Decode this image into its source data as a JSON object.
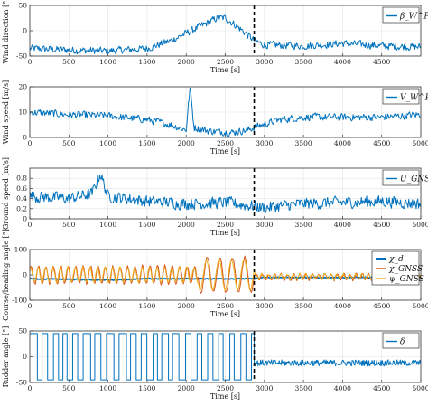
{
  "chart_data": [
    {
      "type": "line",
      "ylabel": "Wind direction [°]",
      "xlabel": "Time [s]",
      "xlim": [
        0,
        5000
      ],
      "ylim": [
        -50,
        50
      ],
      "xticks": [
        0,
        500,
        1000,
        1500,
        2000,
        2500,
        3000,
        3500,
        4000,
        4500
      ],
      "xtick_labels": [
        "0",
        "500",
        "1000",
        "1500",
        "2000",
        "2500",
        "3000",
        "3500",
        "4000",
        "4500"
      ],
      "yticks": [
        -50,
        0,
        50
      ],
      "ytick_labels": [
        "-50",
        "0",
        "50"
      ],
      "grid": true,
      "legend_position": "top-right",
      "event_line_x": 2870,
      "series": [
        {
          "name": "β_W^P",
          "color": "#0072BD",
          "x": [
            0,
            500,
            1000,
            1500,
            1800,
            2000,
            2200,
            2400,
            2500,
            2600,
            2800,
            2870,
            3000,
            3500,
            4000,
            4500,
            5000
          ],
          "y": [
            -35,
            -38,
            -40,
            -35,
            -20,
            -5,
            10,
            25,
            25,
            15,
            -10,
            -20,
            -28,
            -30,
            -25,
            -30,
            -32
          ]
        }
      ]
    },
    {
      "type": "line",
      "ylabel": "Wind speed [m/s]",
      "xlabel": "Time [s]",
      "xlim": [
        0,
        5000
      ],
      "ylim": [
        0,
        20
      ],
      "xticks": [
        0,
        500,
        1000,
        1500,
        2000,
        2500,
        3000,
        3500,
        4000,
        4500,
        5000
      ],
      "xtick_labels": [
        "0",
        "500",
        "1000",
        "1500",
        "2000",
        "2500",
        "3000",
        "3500",
        "4000",
        "4500",
        "5000"
      ],
      "yticks": [
        0,
        10,
        20
      ],
      "ytick_labels": [
        "0",
        "10",
        "20"
      ],
      "grid": true,
      "legend_position": "top-right",
      "event_line_x": 2870,
      "series": [
        {
          "name": "V_W^P",
          "color": "#0072BD",
          "x": [
            0,
            500,
            1000,
            1500,
            1800,
            2000,
            2050,
            2100,
            2300,
            2600,
            2800,
            2870,
            3200,
            3500,
            4000,
            4500,
            5000
          ],
          "y": [
            10,
            9,
            8.5,
            7,
            5,
            3,
            20,
            4,
            2.5,
            2,
            3,
            4,
            7,
            8,
            8,
            8,
            9
          ]
        }
      ]
    },
    {
      "type": "line",
      "ylabel": "Ground speed [m/s]",
      "xlabel": "Time [s]",
      "xlim": [
        0,
        5000
      ],
      "ylim": [
        0,
        1
      ],
      "xticks": [
        0,
        500,
        1000,
        1500,
        2000,
        2500,
        3000,
        3500,
        4000,
        4500,
        5000
      ],
      "xtick_labels": [
        "0",
        "500",
        "1000",
        "1500",
        "2000",
        "2500",
        "3000",
        "3500",
        "4000",
        "4500",
        "5000"
      ],
      "yticks": [
        0,
        0.2,
        0.4,
        0.6,
        0.8
      ],
      "ytick_labels": [
        "0",
        "0.2",
        "0.4",
        "0.6",
        "0.8"
      ],
      "grid": true,
      "legend_position": "top-right",
      "event_line_x": 2870,
      "series": [
        {
          "name": "U_GNSS",
          "color": "#0072BD",
          "x": [
            0,
            500,
            800,
            900,
            1000,
            1500,
            2000,
            2500,
            2870,
            3000,
            3500,
            4000,
            4500,
            5000
          ],
          "y": [
            0.45,
            0.4,
            0.5,
            0.9,
            0.45,
            0.35,
            0.3,
            0.32,
            0.25,
            0.22,
            0.3,
            0.32,
            0.35,
            0.3
          ]
        }
      ]
    },
    {
      "type": "line",
      "ylabel": "Course/heading angle [°]",
      "xlabel": "Time [s]",
      "xlim": [
        0,
        5000
      ],
      "ylim": [
        -100,
        100
      ],
      "xticks": [
        0,
        500,
        1000,
        1500,
        2000,
        2500,
        3000,
        3500,
        4000,
        4500,
        5000
      ],
      "xtick_labels": [
        "0",
        "500",
        "1000",
        "1500",
        "2000",
        "2500",
        "3000",
        "3500",
        "4000",
        "4500",
        "5000"
      ],
      "yticks": [
        -100,
        0,
        100
      ],
      "ytick_labels": [
        "-100",
        "0",
        "100"
      ],
      "grid": true,
      "legend_position": "top-right",
      "event_line_x": 2870,
      "series": [
        {
          "name": "χ_d",
          "color": "#0072BD",
          "x": [
            0,
            1000,
            1500,
            2000,
            2500,
            2870,
            3000,
            4000,
            5000
          ],
          "y": [
            -15,
            -20,
            -15,
            -15,
            -15,
            -15,
            -10,
            -10,
            -10
          ]
        },
        {
          "name": "χ_GNSS",
          "color": "#D95319",
          "x": [
            0,
            500,
            1000,
            1500,
            2000,
            2200,
            2300,
            2500,
            2700,
            2870,
            3000,
            4000,
            5000
          ],
          "y": [
            0,
            0,
            0,
            0,
            0,
            80,
            -60,
            50,
            -70,
            0,
            0,
            0,
            0
          ]
        },
        {
          "name": "ψ_GNSS",
          "color": "#EDB120",
          "x": [
            0,
            500,
            1000,
            1500,
            2000,
            2200,
            2300,
            2500,
            2700,
            2870,
            3000,
            4000,
            5000
          ],
          "y": [
            0,
            0,
            0,
            0,
            0,
            60,
            -60,
            40,
            -60,
            0,
            0,
            0,
            0
          ]
        }
      ]
    },
    {
      "type": "line",
      "ylabel": "Rudder angle [°]",
      "xlabel": "Time [s]",
      "xlim": [
        0,
        5000
      ],
      "ylim": [
        -50,
        50
      ],
      "xticks": [
        0,
        500,
        1000,
        1500,
        2000,
        2500,
        3000,
        3500,
        4000,
        4500,
        5000
      ],
      "xtick_labels": [
        "0",
        "500",
        "1000",
        "1500",
        "2000",
        "2500",
        "3000",
        "3500",
        "4000",
        "4500",
        "5000"
      ],
      "yticks": [
        -50,
        0,
        50
      ],
      "ytick_labels": [
        "-50",
        "0",
        "50"
      ],
      "grid": true,
      "legend_position": "top-right",
      "event_line_x": 2870,
      "series": [
        {
          "name": "δ",
          "color": "#0072BD",
          "x": [
            0,
            2870,
            2880,
            5000
          ],
          "y": [
            45,
            -45,
            -10,
            -15
          ]
        }
      ]
    }
  ]
}
